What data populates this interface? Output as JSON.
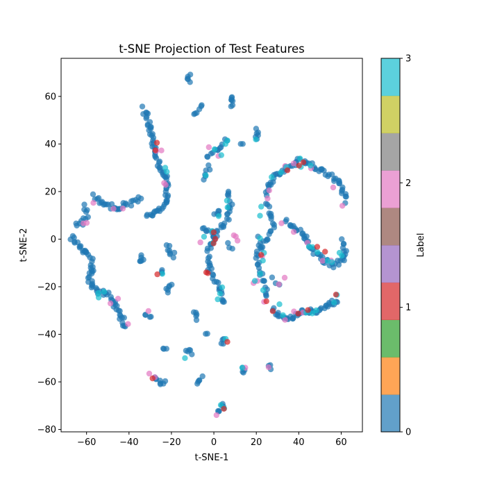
{
  "chart_data": {
    "type": "scatter",
    "title": "t-SNE Projection of Test Features",
    "xlabel": "t-SNE-1",
    "ylabel": "t-SNE-2",
    "xlim": [
      -72,
      70
    ],
    "ylim": [
      -81,
      76
    ],
    "xticks": [
      -60,
      -40,
      -20,
      0,
      20,
      40,
      60
    ],
    "yticks": [
      -80,
      -60,
      -40,
      -20,
      0,
      20,
      40,
      60
    ],
    "grid": false,
    "marker_alpha": 0.7,
    "colorbar": {
      "label": "Label",
      "range": [
        0,
        3
      ],
      "ticks": [
        0,
        1,
        2,
        3
      ],
      "colormap": "tab10",
      "colors": [
        "#1f77b4",
        "#ff7f0e",
        "#2ca02c",
        "#d62728",
        "#9467bd",
        "#8c564b",
        "#e377c2",
        "#7f7f7f",
        "#bcbd22",
        "#17becf"
      ]
    },
    "label_colors": {
      "0": "#1f77b4",
      "1": "#d62728",
      "2": "#e377c2",
      "3": "#17becf"
    },
    "clusters": [
      {
        "label": 0,
        "path": [
          [
            -33,
            55
          ],
          [
            -31,
            50
          ],
          [
            -30,
            44
          ],
          [
            -28,
            38
          ],
          [
            -26,
            32
          ],
          [
            -24,
            28
          ],
          [
            -22,
            24
          ],
          [
            -22,
            18
          ],
          [
            -24,
            13
          ],
          [
            -28,
            11
          ],
          [
            -32,
            10
          ]
        ],
        "n": 70
      },
      {
        "label": 0,
        "path": [
          [
            -35,
            17
          ],
          [
            -40,
            15
          ],
          [
            -45,
            13
          ],
          [
            -50,
            14
          ],
          [
            -54,
            16
          ],
          [
            -57,
            18
          ]
        ],
        "n": 30
      },
      {
        "label": 0,
        "path": [
          [
            -61,
            14
          ],
          [
            -60,
            10
          ],
          [
            -62,
            7
          ],
          [
            -65,
            5
          ]
        ],
        "n": 12
      },
      {
        "label": 0,
        "path": [
          [
            -67,
            1
          ],
          [
            -64,
            -2
          ],
          [
            -61,
            -5
          ],
          [
            -58,
            -8
          ],
          [
            -57,
            -12
          ],
          [
            -59,
            -16
          ],
          [
            -56,
            -21
          ],
          [
            -52,
            -23
          ],
          [
            -49,
            -24
          ],
          [
            -47,
            -27
          ],
          [
            -45,
            -31
          ],
          [
            -43,
            -34
          ],
          [
            -42,
            -37
          ]
        ],
        "n": 65
      },
      {
        "label": 0,
        "path": [
          [
            -34,
            -7
          ],
          [
            -34,
            -10
          ]
        ],
        "n": 6
      },
      {
        "label": 0,
        "path": [
          [
            -22,
            -3
          ],
          [
            -21,
            -5
          ],
          [
            -19,
            -7
          ]
        ],
        "n": 8
      },
      {
        "label": 0,
        "path": [
          [
            -20,
            -19
          ],
          [
            -22,
            -22
          ]
        ],
        "n": 6
      },
      {
        "label": 0,
        "path": [
          [
            -24,
            -14
          ]
        ],
        "n": 3
      },
      {
        "label": 0,
        "path": [
          [
            -32,
            -32
          ],
          [
            -30,
            -32
          ]
        ],
        "n": 4
      },
      {
        "label": 0,
        "path": [
          [
            -12,
            67
          ],
          [
            -12,
            69
          ]
        ],
        "n": 5
      },
      {
        "label": 0,
        "path": [
          [
            -10,
            52
          ],
          [
            -8,
            54
          ],
          [
            -6,
            56
          ]
        ],
        "n": 6
      },
      {
        "label": 0,
        "path": [
          [
            -4,
            35
          ],
          [
            0,
            37
          ],
          [
            4,
            39
          ],
          [
            6,
            42
          ]
        ],
        "n": 12
      },
      {
        "label": 0,
        "path": [
          [
            9,
            60
          ],
          [
            9,
            56
          ]
        ],
        "n": 7
      },
      {
        "label": 0,
        "path": [
          [
            -4,
            26
          ],
          [
            -3,
            28
          ]
        ],
        "n": 4
      },
      {
        "label": 0,
        "path": [
          [
            -2,
            30
          ]
        ],
        "n": 2
      },
      {
        "label": 0,
        "path": [
          [
            13,
            39
          ]
        ],
        "n": 2
      },
      {
        "label": 0,
        "path": [
          [
            20,
            46
          ],
          [
            20,
            42
          ]
        ],
        "n": 6
      },
      {
        "label": 0,
        "path": [
          [
            7,
            20
          ],
          [
            8,
            14
          ],
          [
            6,
            8
          ],
          [
            4,
            5
          ],
          [
            2,
            3
          ],
          [
            0,
            0
          ],
          [
            -2,
            -3
          ],
          [
            -3,
            -8
          ],
          [
            -2,
            -13
          ],
          [
            0,
            -17
          ],
          [
            2,
            -20
          ],
          [
            3,
            -24
          ],
          [
            5,
            -27
          ]
        ],
        "n": 55
      },
      {
        "label": 0,
        "path": [
          [
            -5,
            5
          ],
          [
            -3,
            3
          ],
          [
            0,
            2
          ]
        ],
        "n": 8
      },
      {
        "label": 0,
        "path": [
          [
            0,
            10
          ],
          [
            3,
            12
          ]
        ],
        "n": 5
      },
      {
        "label": 0,
        "path": [
          [
            24,
            19
          ],
          [
            27,
            24
          ],
          [
            31,
            28
          ],
          [
            36,
            31
          ],
          [
            40,
            33
          ],
          [
            45,
            32
          ],
          [
            50,
            29
          ],
          [
            55,
            27
          ],
          [
            59,
            24
          ],
          [
            61,
            20
          ],
          [
            62,
            16
          ]
        ],
        "n": 60
      },
      {
        "label": 0,
        "path": [
          [
            25,
            15
          ],
          [
            27,
            10
          ],
          [
            28,
            5
          ],
          [
            25,
            0
          ],
          [
            21,
            -5
          ],
          [
            20,
            -9
          ],
          [
            22,
            -14
          ],
          [
            24,
            -19
          ],
          [
            25,
            -24
          ]
        ],
        "n": 40
      },
      {
        "label": 0,
        "path": [
          [
            34,
            8
          ],
          [
            38,
            5
          ],
          [
            42,
            2
          ],
          [
            45,
            -2
          ],
          [
            48,
            -6
          ],
          [
            52,
            -9
          ],
          [
            57,
            -11
          ],
          [
            61,
            -9
          ],
          [
            62,
            -5
          ],
          [
            61,
            -1
          ]
        ],
        "n": 50
      },
      {
        "label": 0,
        "path": [
          [
            28,
            -30
          ],
          [
            32,
            -33
          ],
          [
            36,
            -33
          ],
          [
            40,
            -31
          ],
          [
            44,
            -30
          ],
          [
            48,
            -30
          ],
          [
            52,
            -29
          ],
          [
            55,
            -27
          ],
          [
            58,
            -26
          ]
        ],
        "n": 45
      },
      {
        "label": 0,
        "path": [
          [
            20,
            0
          ],
          [
            23,
            -3
          ]
        ],
        "n": 4
      },
      {
        "label": 0,
        "path": [
          [
            28,
            -17
          ],
          [
            31,
            -20
          ]
        ],
        "n": 3
      },
      {
        "label": 0,
        "path": [
          [
            -13,
            -47
          ],
          [
            -11,
            -48
          ]
        ],
        "n": 5
      },
      {
        "label": 0,
        "path": [
          [
            -23,
            -47
          ]
        ],
        "n": 3
      },
      {
        "label": 0,
        "path": [
          [
            -28,
            -59
          ],
          [
            -25,
            -60
          ],
          [
            -23,
            -61
          ]
        ],
        "n": 8
      },
      {
        "label": 0,
        "path": [
          [
            -9,
            -31
          ],
          [
            -9,
            -34
          ]
        ],
        "n": 5
      },
      {
        "label": 0,
        "path": [
          [
            -3,
            -39
          ]
        ],
        "n": 2
      },
      {
        "label": 0,
        "path": [
          [
            -8,
            -60
          ],
          [
            -6,
            -58
          ]
        ],
        "n": 5
      },
      {
        "label": 0,
        "path": [
          [
            4,
            -43
          ]
        ],
        "n": 4
      },
      {
        "label": 0,
        "path": [
          [
            14,
            -53
          ],
          [
            14,
            -56
          ]
        ],
        "n": 4
      },
      {
        "label": 0,
        "path": [
          [
            26,
            -54
          ]
        ],
        "n": 3
      },
      {
        "label": 0,
        "path": [
          [
            2,
            -73
          ],
          [
            4,
            -71
          ],
          [
            5,
            -70
          ]
        ],
        "n": 6
      },
      {
        "label": 0,
        "path": [
          [
            7,
            -2
          ],
          [
            8,
            -5
          ]
        ],
        "n": 3
      },
      {
        "label": 2,
        "path": [
          [
            -27,
            38
          ],
          [
            -25,
            37
          ],
          [
            -24,
            24
          ],
          [
            -23,
            22
          ],
          [
            -47,
            13
          ],
          [
            -42,
            12
          ],
          [
            -62,
            6
          ],
          [
            -60,
            6
          ],
          [
            -57,
            16
          ],
          [
            -49,
            -27
          ],
          [
            -45,
            -24
          ],
          [
            -31,
            -31
          ],
          [
            -40,
            -35
          ],
          [
            10,
            0
          ],
          [
            11,
            -1
          ],
          [
            9,
            1
          ],
          [
            26,
            20
          ],
          [
            24,
            -26
          ],
          [
            25,
            17
          ],
          [
            33,
            30
          ],
          [
            37,
            31
          ],
          [
            46,
            29
          ],
          [
            57,
            21
          ],
          [
            61,
            14
          ],
          [
            30,
            -19
          ],
          [
            33,
            -17
          ],
          [
            20,
            -17
          ],
          [
            18,
            -18
          ],
          [
            34,
            -33
          ],
          [
            38,
            -30
          ],
          [
            41,
            -31
          ],
          [
            26,
            -54
          ],
          [
            1,
            -73
          ],
          [
            14,
            -55
          ],
          [
            22,
            -8
          ],
          [
            32,
            7
          ],
          [
            38,
            4
          ],
          [
            44,
            -1
          ],
          [
            51,
            -10
          ],
          [
            55,
            -8
          ],
          [
            -7,
            -2
          ],
          [
            2,
            35
          ],
          [
            -2,
            38
          ],
          [
            -28,
            -59
          ],
          [
            -30,
            -57
          ]
        ],
        "n": 45
      },
      {
        "label": 3,
        "path": [
          [
            22,
            -14
          ],
          [
            23,
            -10
          ],
          [
            24,
            -5
          ],
          [
            21,
            0
          ],
          [
            22,
            9
          ],
          [
            23,
            14
          ],
          [
            28,
            25
          ],
          [
            31,
            27
          ],
          [
            35,
            30
          ],
          [
            41,
            31
          ],
          [
            46,
            30
          ],
          [
            44,
            -30
          ],
          [
            46,
            -31
          ],
          [
            49,
            -29
          ],
          [
            57,
            -26
          ],
          [
            58,
            -24
          ],
          [
            45,
            -2
          ],
          [
            46,
            -3
          ],
          [
            48,
            -6
          ],
          [
            54,
            -9
          ],
          [
            60,
            -7
          ],
          [
            -23,
            31
          ],
          [
            -22,
            29
          ],
          [
            -25,
            -15
          ],
          [
            -55,
            -25
          ],
          [
            -52,
            -22
          ],
          [
            -54,
            -22
          ],
          [
            1,
            -25
          ],
          [
            3,
            -23
          ],
          [
            4,
            -21
          ],
          [
            0,
            4
          ],
          [
            -1,
            -1
          ],
          [
            5,
            40
          ],
          [
            6,
            41
          ],
          [
            3,
            35
          ],
          [
            0,
            38
          ],
          [
            20,
            -18
          ],
          [
            24,
            -21
          ],
          [
            -13,
            -50
          ],
          [
            4,
            -70
          ],
          [
            5,
            -71
          ],
          [
            6,
            -43
          ],
          [
            14,
            -54
          ],
          [
            40,
            33
          ],
          [
            30,
            -28
          ],
          [
            33,
            -31
          ],
          [
            55,
            -10
          ],
          [
            60,
            -5
          ],
          [
            -4,
            0
          ],
          [
            3,
            10
          ],
          [
            20,
            43
          ],
          [
            -3,
            26
          ],
          [
            6,
            13
          ],
          [
            7,
            17
          ]
        ],
        "n": 54
      },
      {
        "label": 1,
        "path": [
          [
            -27,
            40
          ],
          [
            -28,
            37
          ],
          [
            1,
            1
          ],
          [
            0,
            3
          ],
          [
            -1,
            -2
          ],
          [
            -2,
            -14
          ],
          [
            -3,
            -13
          ],
          [
            34,
            30
          ],
          [
            41,
            30
          ],
          [
            43,
            32
          ],
          [
            52,
            -5
          ],
          [
            49,
            -4
          ],
          [
            40,
            -31
          ],
          [
            25,
            -26
          ],
          [
            6,
            -44
          ],
          [
            -26,
            -14
          ],
          [
            -29,
            -58
          ],
          [
            4,
            -71
          ],
          [
            28,
            -30
          ],
          [
            58,
            -24
          ],
          [
            22,
            -7
          ],
          [
            45,
            -30
          ]
        ],
        "n": 22
      }
    ]
  }
}
